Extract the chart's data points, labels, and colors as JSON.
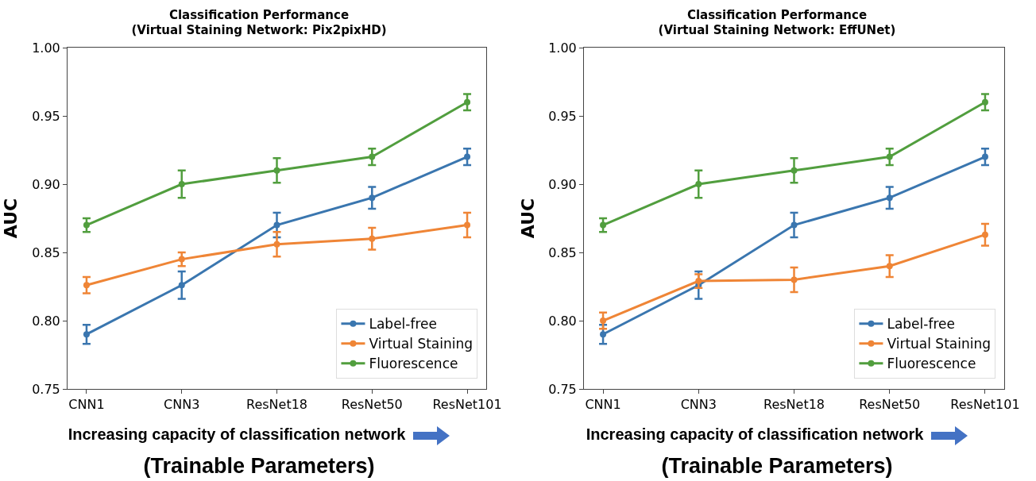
{
  "chart_data": [
    {
      "type": "line",
      "title": "Classification Performance\n(Virtual Staining Network: Pix2pixHD)",
      "ylabel": "AUC",
      "categories": [
        "CNN1",
        "CNN3",
        "ResNet18",
        "ResNet50",
        "ResNet101"
      ],
      "series": [
        {
          "name": "Label-free",
          "color": "#3a76af",
          "values": [
            0.79,
            0.826,
            0.87,
            0.89,
            0.92
          ],
          "errors": [
            0.007,
            0.01,
            0.009,
            0.008,
            0.006
          ]
        },
        {
          "name": "Virtual Staining",
          "color": "#ef8536",
          "values": [
            0.826,
            0.845,
            0.856,
            0.86,
            0.87
          ],
          "errors": [
            0.006,
            0.005,
            0.009,
            0.008,
            0.009
          ]
        },
        {
          "name": "Fluorescence",
          "color": "#519e3e",
          "values": [
            0.87,
            0.9,
            0.91,
            0.92,
            0.96
          ],
          "errors": [
            0.005,
            0.01,
            0.009,
            0.006,
            0.006
          ]
        }
      ],
      "ylim": [
        0.75,
        1.0
      ],
      "yticks": [
        0.75,
        {
          "value": 0.8,
          "label": "0.80"
        },
        0.85,
        {
          "value": 0.9,
          "label": "0.90"
        },
        0.95,
        {
          "value": 1.0,
          "label": "1.00"
        }
      ],
      "legend": "bottom right",
      "marker": "circle",
      "line_style": "solid",
      "grid": false,
      "annotations": [
        "Increasing capacity of classification network",
        "(Trainable Parameters)"
      ]
    },
    {
      "type": "line",
      "title": "Classification Performance\n(Virtual Staining Network: EffUNet)",
      "ylabel": "AUC",
      "categories": [
        "CNN1",
        "CNN3",
        "ResNet18",
        "ResNet50",
        "ResNet101"
      ],
      "series": [
        {
          "name": "Label-free",
          "color": "#3a76af",
          "values": [
            0.79,
            0.826,
            0.87,
            0.89,
            0.92
          ],
          "errors": [
            0.007,
            0.01,
            0.009,
            0.008,
            0.006
          ]
        },
        {
          "name": "Virtual Staining",
          "color": "#ef8536",
          "values": [
            0.8,
            0.829,
            0.83,
            0.84,
            0.863
          ],
          "errors": [
            0.006,
            0.005,
            0.009,
            0.008,
            0.008
          ]
        },
        {
          "name": "Fluorescence",
          "color": "#519e3e",
          "values": [
            0.87,
            0.9,
            0.91,
            0.92,
            0.96
          ],
          "errors": [
            0.005,
            0.01,
            0.009,
            0.006,
            0.006
          ]
        }
      ],
      "ylim": [
        0.75,
        1.0
      ],
      "yticks": [
        0.75,
        {
          "value": 0.8,
          "label": "0.80"
        },
        0.85,
        {
          "value": 0.9,
          "label": "0.90"
        },
        0.95,
        {
          "value": 1.0,
          "label": "1.00"
        }
      ],
      "legend": "bottom right",
      "marker": "circle",
      "line_style": "solid",
      "grid": false,
      "annotations": [
        "Increasing capacity of classification network",
        "(Trainable Parameters)"
      ]
    }
  ]
}
